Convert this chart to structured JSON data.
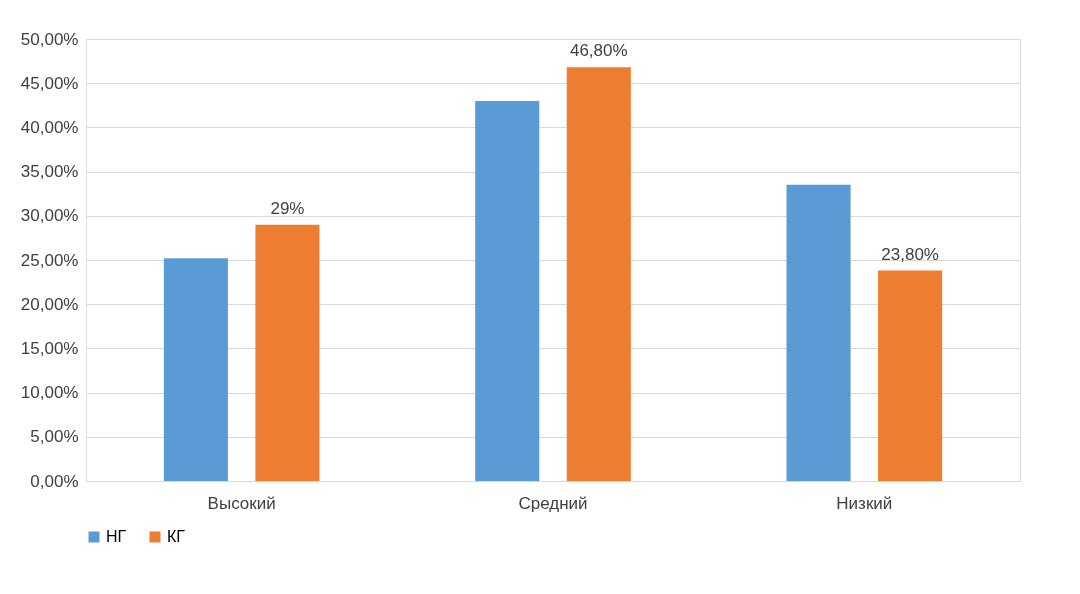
{
  "chart_data": {
    "type": "bar",
    "categories": [
      "Высокий",
      "Средний",
      "Низкий"
    ],
    "series": [
      {
        "name": "НГ",
        "color": "#5b9bd5",
        "values": [
          25.2,
          43.0,
          33.5
        ]
      },
      {
        "name": "КГ",
        "color": "#ed7d31",
        "values": [
          29,
          46.8,
          23.8
        ],
        "value_labels": [
          "29%",
          "46,80%",
          "23,80%"
        ]
      }
    ],
    "ylim": [
      0,
      50
    ],
    "yticks": [
      {
        "value": 0,
        "label": "0,00%"
      },
      {
        "value": 5,
        "label": "5,00%"
      },
      {
        "value": 10,
        "label": "10,00%"
      },
      {
        "value": 15,
        "label": "15,00%"
      },
      {
        "value": 20,
        "label": "20,00%"
      },
      {
        "value": 25,
        "label": "25,00%"
      },
      {
        "value": 30,
        "label": "30,00%"
      },
      {
        "value": 35,
        "label": "35,00%"
      },
      {
        "value": 40,
        "label": "40,00%"
      },
      {
        "value": 45,
        "label": "45,00%"
      },
      {
        "value": 50,
        "label": "50,00%"
      }
    ],
    "grid": "y",
    "legend": "bottom"
  }
}
